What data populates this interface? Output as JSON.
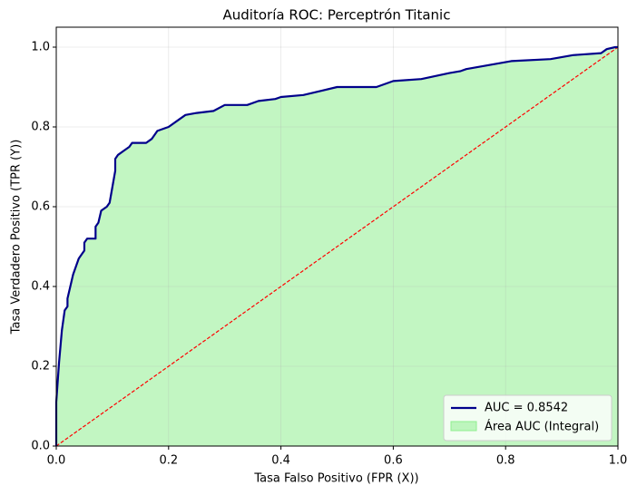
{
  "chart_data": {
    "type": "roc",
    "title": "Auditoría ROC: Perceptrón Titanic",
    "xlabel": "Tasa Falso Positivo (FPR (X))",
    "ylabel": "Tasa Verdadero Positivo (TPR (Y))",
    "xlim": [
      0,
      1
    ],
    "ylim": [
      0,
      1.05
    ],
    "xticks": [
      {
        "value": 0,
        "label": "0.0"
      },
      0.2,
      0.4,
      0.6,
      0.8,
      {
        "value": 1,
        "label": "1.0"
      }
    ],
    "yticks": [
      {
        "value": 0,
        "label": "0.0"
      },
      0.2,
      0.4,
      0.6,
      0.8,
      {
        "value": 1,
        "label": "1.0"
      }
    ],
    "grid": true,
    "legend": "lower right",
    "series": [
      {
        "name": "AUC = 0.8542",
        "color": "#00008b",
        "x": [
          0,
          0,
          0.005,
          0.01,
          0.015,
          0.02,
          0.02,
          0.025,
          0.03,
          0.035,
          0.04,
          0.045,
          0.05,
          0.05,
          0.055,
          0.07,
          0.07,
          0.075,
          0.08,
          0.09,
          0.095,
          0.1,
          0.105,
          0.105,
          0.11,
          0.12,
          0.13,
          0.135,
          0.16,
          0.17,
          0.18,
          0.2,
          0.22,
          0.23,
          0.25,
          0.28,
          0.3,
          0.34,
          0.36,
          0.39,
          0.4,
          0.44,
          0.47,
          0.5,
          0.57,
          0.6,
          0.65,
          0.7,
          0.72,
          0.73,
          0.77,
          0.81,
          0.88,
          0.92,
          0.97,
          0.98,
          0.995,
          1
        ],
        "y": [
          0,
          0.11,
          0.21,
          0.29,
          0.34,
          0.35,
          0.37,
          0.4,
          0.43,
          0.45,
          0.47,
          0.48,
          0.49,
          0.51,
          0.52,
          0.52,
          0.55,
          0.56,
          0.59,
          0.6,
          0.61,
          0.65,
          0.69,
          0.72,
          0.73,
          0.74,
          0.75,
          0.76,
          0.76,
          0.77,
          0.79,
          0.8,
          0.82,
          0.83,
          0.835,
          0.84,
          0.855,
          0.855,
          0.865,
          0.87,
          0.875,
          0.88,
          0.89,
          0.9,
          0.9,
          0.915,
          0.92,
          0.935,
          0.94,
          0.945,
          0.955,
          0.965,
          0.97,
          0.98,
          0.985,
          0.995,
          1,
          1
        ]
      }
    ],
    "area": {
      "name": "Área AUC (Integral)",
      "color": "#90ee90"
    },
    "diagonal": {
      "x": [
        0,
        1
      ],
      "y": [
        0,
        1
      ],
      "color": "#ff0000"
    }
  }
}
